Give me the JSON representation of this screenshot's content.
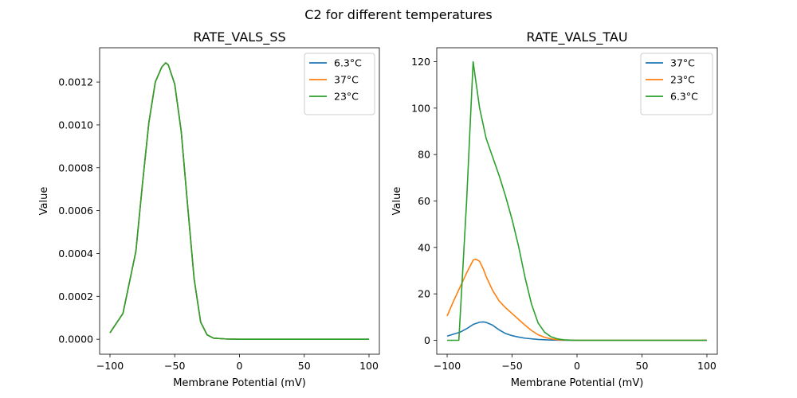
{
  "suptitle": "C2 for different temperatures",
  "chart_data": [
    {
      "type": "line",
      "title": "RATE_VALS_SS",
      "xlabel": "Membrane Potential (mV)",
      "ylabel": "Value",
      "xlim": [
        -108,
        108
      ],
      "ylim": [
        -7e-05,
        0.00136
      ],
      "xticks": [
        -100,
        -50,
        0,
        50,
        100
      ],
      "xtick_labels": [
        "−100",
        "−50",
        "0",
        "50",
        "100"
      ],
      "yticks": [
        0,
        0.0002,
        0.0004,
        0.0006,
        0.0008,
        0.001,
        0.0012
      ],
      "ytick_labels": [
        "0.0000",
        "0.0002",
        "0.0004",
        "0.0006",
        "0.0008",
        "0.0010",
        "0.0012"
      ],
      "legend": "top-right",
      "grid": false,
      "x": [
        -100,
        -90,
        -80,
        -75,
        -70,
        -65,
        -60,
        -57,
        -55,
        -50,
        -45,
        -40,
        -35,
        -30,
        -25,
        -20,
        -10,
        0,
        50,
        100
      ],
      "series": [
        {
          "name": "6.3°C",
          "color": "#1f77b4",
          "values": [
            3e-05,
            0.00012,
            0.00041,
            0.00072,
            0.00101,
            0.0012,
            0.00127,
            0.00129,
            0.00128,
            0.00119,
            0.00097,
            0.00062,
            0.00028,
            8e-05,
            2e-05,
            5e-06,
            1e-06,
            0,
            0,
            0
          ]
        },
        {
          "name": "37°C",
          "color": "#ff7f0e",
          "values": [
            3e-05,
            0.00012,
            0.00041,
            0.00072,
            0.00101,
            0.0012,
            0.00127,
            0.00129,
            0.00128,
            0.00119,
            0.00097,
            0.00062,
            0.00028,
            8e-05,
            2e-05,
            5e-06,
            1e-06,
            0,
            0,
            0
          ]
        },
        {
          "name": "23°C",
          "color": "#2ca02c",
          "values": [
            3e-05,
            0.00012,
            0.00041,
            0.00072,
            0.00101,
            0.0012,
            0.00127,
            0.00129,
            0.00128,
            0.00119,
            0.00097,
            0.00062,
            0.00028,
            8e-05,
            2e-05,
            5e-06,
            1e-06,
            0,
            0,
            0
          ]
        }
      ]
    },
    {
      "type": "line",
      "title": "RATE_VALS_TAU",
      "xlabel": "Membrane Potential (mV)",
      "ylabel": "Value",
      "xlim": [
        -108,
        108
      ],
      "ylim": [
        -6,
        126
      ],
      "xticks": [
        -100,
        -50,
        0,
        50,
        100
      ],
      "xtick_labels": [
        "−100",
        "−50",
        "0",
        "50",
        "100"
      ],
      "yticks": [
        0,
        20,
        40,
        60,
        80,
        100,
        120
      ],
      "ytick_labels": [
        "0",
        "20",
        "40",
        "60",
        "80",
        "100",
        "120"
      ],
      "legend": "top-right",
      "grid": false,
      "series": [
        {
          "name": "37°C",
          "color": "#1f77b4",
          "x": [
            -100,
            -90,
            -85,
            -80,
            -75,
            -72,
            -70,
            -65,
            -60,
            -55,
            -50,
            -45,
            -40,
            -30,
            -20,
            -10,
            0,
            50,
            100
          ],
          "values": [
            1.8,
            3.5,
            5,
            6.8,
            7.8,
            7.9,
            7.7,
            6.5,
            4.5,
            2.9,
            2.0,
            1.4,
            0.9,
            0.35,
            0.1,
            0.03,
            0,
            0,
            0
          ]
        },
        {
          "name": "23°C",
          "color": "#ff7f0e",
          "x": [
            -100,
            -95,
            -90,
            -85,
            -80,
            -78,
            -75,
            -72,
            -70,
            -65,
            -60,
            -55,
            -50,
            -45,
            -40,
            -35,
            -30,
            -25,
            -20,
            -15,
            -10,
            0,
            50,
            100
          ],
          "values": [
            10.5,
            17,
            23,
            29,
            34.5,
            35,
            34,
            30.5,
            27.5,
            21.5,
            17,
            14,
            11.5,
            9,
            6.5,
            4.2,
            2.4,
            1.3,
            0.6,
            0.25,
            0.1,
            0,
            0,
            0
          ]
        },
        {
          "name": "6.3°C",
          "color": "#2ca02c",
          "x": [
            -100,
            -95,
            -91,
            -85,
            -80,
            -78,
            -75,
            -70,
            -65,
            -60,
            -55,
            -50,
            -45,
            -40,
            -35,
            -30,
            -25,
            -20,
            -15,
            -10,
            -5,
            0,
            50,
            100
          ],
          "values": [
            0,
            0,
            0,
            60,
            120,
            112,
            100,
            87,
            79,
            71,
            62,
            52,
            40.5,
            27,
            15.5,
            7.5,
            3.5,
            1.5,
            0.6,
            0.2,
            0.08,
            0,
            0,
            0
          ]
        }
      ]
    }
  ]
}
